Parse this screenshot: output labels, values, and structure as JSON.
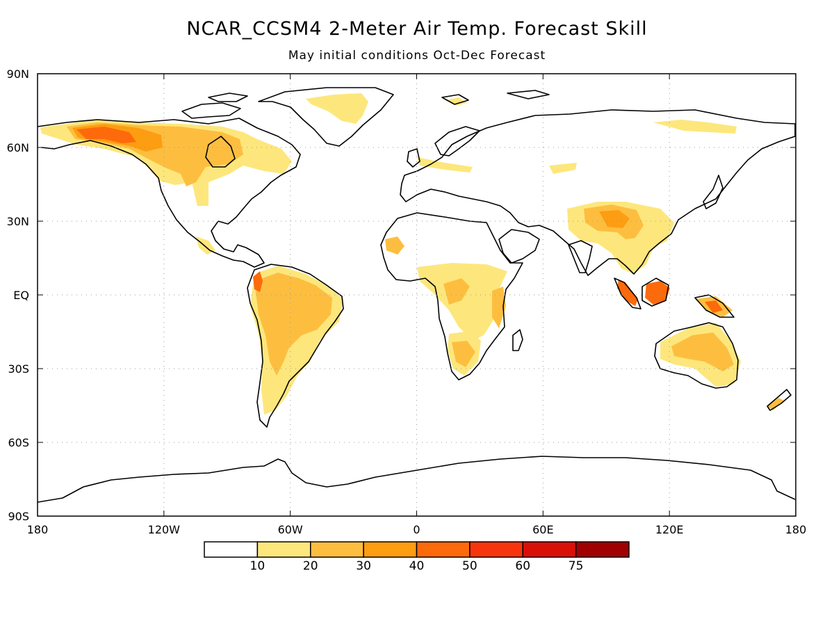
{
  "title": "NCAR_CCSM4 2-Meter Air Temp. Forecast Skill",
  "subtitle": "May initial conditions   Oct-Dec Forecast",
  "axes": {
    "lat_labels": [
      {
        "lat": 90,
        "label": "90N"
      },
      {
        "lat": 60,
        "label": "60N"
      },
      {
        "lat": 30,
        "label": "30N"
      },
      {
        "lat": 0,
        "label": "EQ"
      },
      {
        "lat": -30,
        "label": "30S"
      },
      {
        "lat": -60,
        "label": "60S"
      },
      {
        "lat": -90,
        "label": "90S"
      }
    ],
    "lon_labels": [
      {
        "lon": -180,
        "label": "180"
      },
      {
        "lon": -120,
        "label": "120W"
      },
      {
        "lon": -60,
        "label": "60W"
      },
      {
        "lon": 0,
        "label": "0"
      },
      {
        "lon": 60,
        "label": "60E"
      },
      {
        "lon": 120,
        "label": "120E"
      },
      {
        "lon": 180,
        "label": "180"
      }
    ],
    "grid_lats": [
      60,
      30,
      0,
      -30,
      -60
    ],
    "grid_lons": [
      -120,
      -60,
      0,
      60,
      120
    ]
  },
  "colorbar": {
    "colors": [
      "#ffffff",
      "#fde77c",
      "#fdbe40",
      "#fd9d11",
      "#fd6a0b",
      "#f7350c",
      "#d91008",
      "#a00000"
    ],
    "labels": [
      "10",
      "20",
      "30",
      "40",
      "50",
      "60",
      "75"
    ]
  },
  "land_color": "#ffffff",
  "coast_color": "#000000"
}
